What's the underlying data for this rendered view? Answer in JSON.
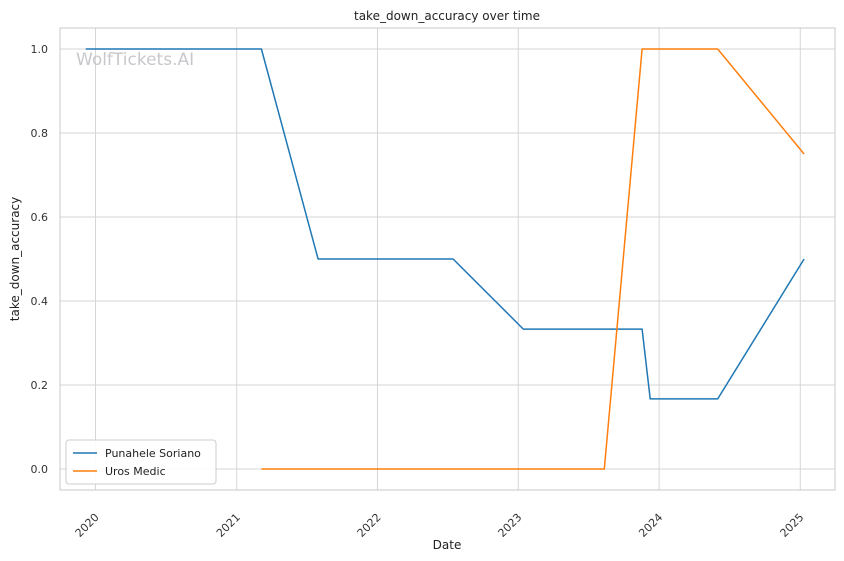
{
  "colors": {
    "series_1": "#1f77b4",
    "series_2": "#ff7f0e",
    "grid": "#d6d6d6",
    "axes": "#c8c8c8"
  },
  "watermark": "WolfTickets.AI",
  "chart_data": {
    "type": "line",
    "title": "take_down_accuracy over time",
    "xlabel": "Date",
    "ylabel": "take_down_accuracy",
    "x_ticks": [
      "2020",
      "2021",
      "2022",
      "2023",
      "2024",
      "2025"
    ],
    "y_ticks": [
      "0.0",
      "0.2",
      "0.4",
      "0.6",
      "0.8",
      "1.0"
    ],
    "xlim": [
      "2019-10-01",
      "2025-04-01"
    ],
    "ylim": [
      -0.05,
      1.05
    ],
    "grid": true,
    "legend_position": "lower-left",
    "series": [
      {
        "name": "Punahele Soriano",
        "color": "#1f77b4",
        "points": [
          [
            "2019-12-07",
            1.0
          ],
          [
            "2021-03-06",
            1.0
          ],
          [
            "2021-07-31",
            0.5
          ],
          [
            "2022-07-16",
            0.5
          ],
          [
            "2023-01-14",
            0.333
          ],
          [
            "2023-11-18",
            0.333
          ],
          [
            "2023-12-09",
            0.167
          ],
          [
            "2024-06-01",
            0.167
          ],
          [
            "2025-01-11",
            0.5
          ]
        ]
      },
      {
        "name": "Uros Medic",
        "color": "#ff7f0e",
        "points": [
          [
            "2021-03-06",
            0.0
          ],
          [
            "2023-08-12",
            0.0
          ],
          [
            "2023-11-18",
            1.0
          ],
          [
            "2024-06-01",
            1.0
          ],
          [
            "2025-01-11",
            0.75
          ]
        ]
      }
    ]
  }
}
